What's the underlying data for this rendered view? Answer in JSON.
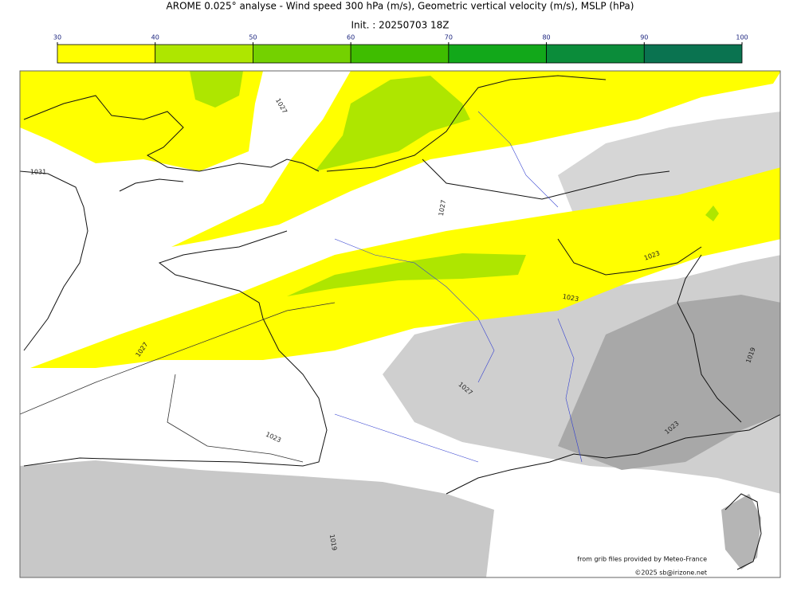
{
  "title": "AROME 0.025° analyse - Wind speed 300 hPa (m/s), Geometric vertical velocity (m/s), MSLP (hPa)",
  "subtitle": "Init. : 20250703 18Z",
  "colorbar": {
    "ticks": [
      30,
      40,
      50,
      60,
      70,
      80,
      90,
      100
    ],
    "colors": [
      "#ffff00",
      "#aee600",
      "#74d100",
      "#3fbd00",
      "#12a81a",
      "#0b8c3a",
      "#0a7350"
    ]
  },
  "isobar_labels": [
    "1031",
    "1027",
    "1027",
    "1023",
    "1023",
    "1027",
    "1023",
    "1027",
    "1023",
    "1019",
    "1019"
  ],
  "credits": [
    "from grib files provided by Meteo-France",
    "©2025 sb@irizone.net"
  ]
}
